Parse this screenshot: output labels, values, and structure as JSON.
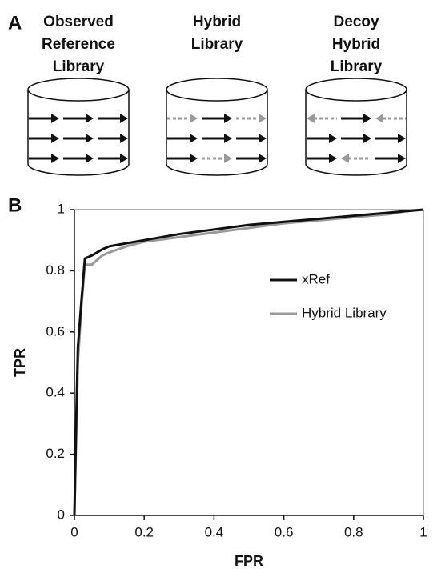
{
  "panels": [
    "A",
    "B"
  ],
  "diagram": {
    "libraries": [
      {
        "title": [
          "Observed",
          "Reference",
          "Library"
        ]
      },
      {
        "title": [
          "Hybrid",
          "Library"
        ]
      },
      {
        "title": [
          "Decoy",
          "Hybrid",
          "Library"
        ]
      }
    ]
  },
  "chart_data": {
    "type": "line",
    "x_label": "FPR",
    "y_label": "TPR",
    "x": [
      0,
      0.005,
      0.01,
      0.02,
      0.03,
      0.05,
      0.08,
      0.1,
      0.15,
      0.2,
      0.3,
      0.4,
      0.5,
      0.6,
      0.7,
      0.8,
      0.9,
      0.95,
      1
    ],
    "series": [
      {
        "name": "xRef",
        "color": "#111111",
        "values": [
          0,
          0.3,
          0.55,
          0.7,
          0.84,
          0.85,
          0.87,
          0.88,
          0.89,
          0.9,
          0.92,
          0.935,
          0.95,
          0.96,
          0.97,
          0.98,
          0.99,
          0.995,
          1
        ]
      },
      {
        "name": "Hybrid Library",
        "color": "#999999",
        "values": [
          0,
          0.25,
          0.5,
          0.68,
          0.82,
          0.82,
          0.85,
          0.86,
          0.88,
          0.895,
          0.91,
          0.925,
          0.94,
          0.955,
          0.965,
          0.975,
          0.985,
          0.995,
          1
        ]
      }
    ],
    "xlim": [
      0,
      1
    ],
    "ylim": [
      0,
      1
    ],
    "xticks": [
      0,
      0.2,
      0.4,
      0.6,
      0.8,
      1
    ],
    "yticks": [
      0,
      0.2,
      0.4,
      0.6,
      0.8,
      1
    ],
    "legend": "right"
  }
}
